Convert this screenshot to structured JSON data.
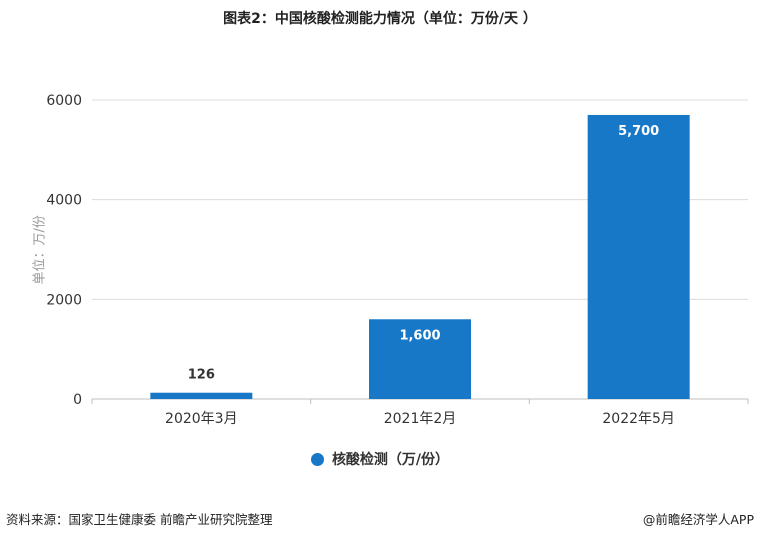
{
  "title": "图表2：中国核酸检测能力情况（单位：万份/天 ）",
  "source": "资料来源：国家卫生健康委 前瞻产业研究院整理",
  "brand": "@前瞻经济学人APP",
  "colors": {
    "bar": "#1778c8",
    "grid": "#dcdcdc"
  },
  "chart_data": {
    "type": "bar",
    "title": "图表2：中国核酸检测能力情况（单位：万份/天 ）",
    "categories": [
      "2020年3月",
      "2021年2月",
      "2022年5月"
    ],
    "series": [
      {
        "name": "核酸检测（万/份）",
        "values": [
          126,
          1600,
          5700
        ]
      }
    ],
    "data_labels": [
      "126",
      "1,600",
      "5,700"
    ],
    "ylabel": "单位：万/份",
    "xlabel": "",
    "ylim": [
      0,
      6000
    ],
    "yticks": [
      0,
      2000,
      4000,
      6000
    ],
    "grid": true,
    "legend": "bottom-center"
  }
}
